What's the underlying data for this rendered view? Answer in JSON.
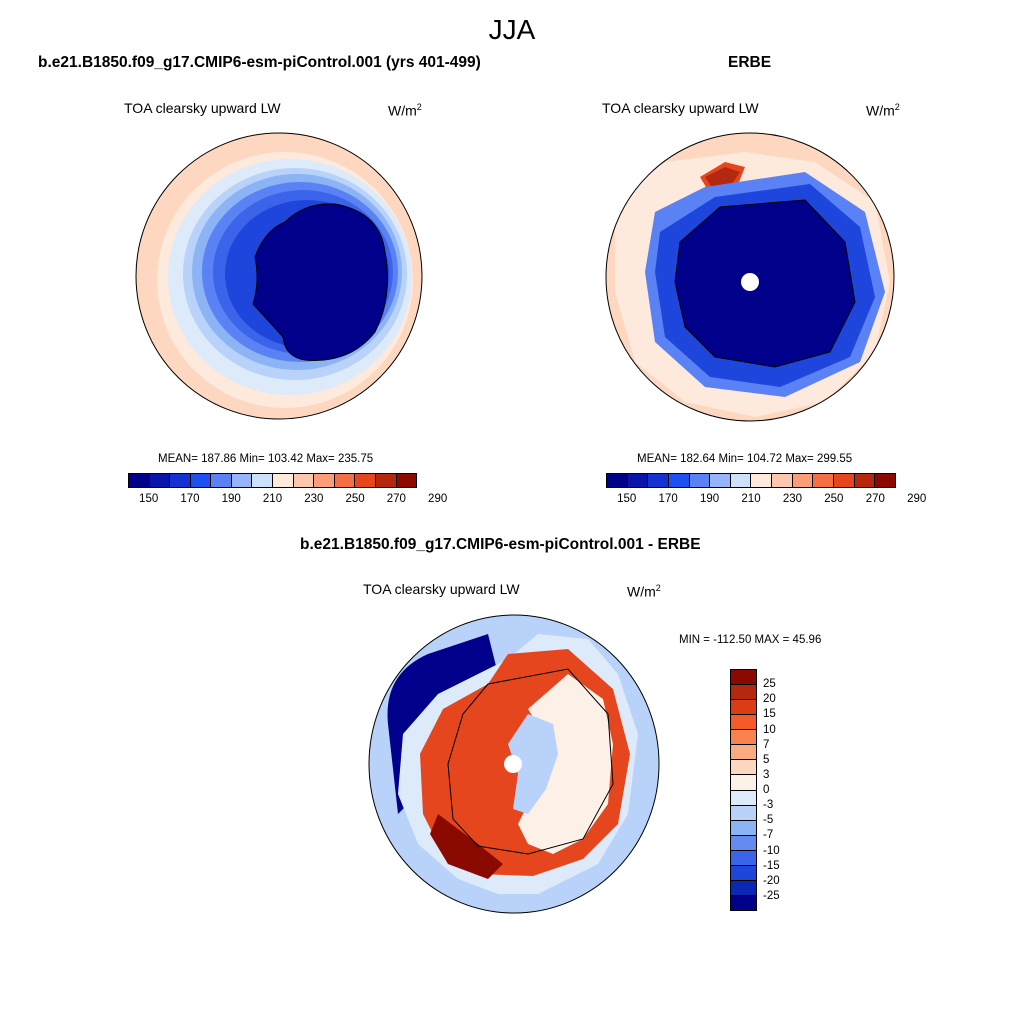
{
  "main_title": "JJA",
  "top_left": {
    "case_title": "b.e21.B1850.f09_g17.CMIP6-esm-piControl.001 (yrs 401-499)",
    "panel_title": "TOA clearsky upward LW",
    "units_base": "W/m",
    "units_exp": "2",
    "stats": "MEAN= 187.86  Min= 103.42  Max= 235.75"
  },
  "top_right": {
    "case_title": "ERBE",
    "panel_title": "TOA clearsky upward LW",
    "units_base": "W/m",
    "units_exp": "2",
    "stats": "MEAN= 182.64  Min= 104.72  Max= 299.55"
  },
  "bottom": {
    "case_title": "b.e21.B1850.f09_g17.CMIP6-esm-piControl.001 - ERBE",
    "panel_title": "TOA clearsky upward LW",
    "units_base": "W/m",
    "units_exp": "2",
    "minmax": "MIN = -112.50 MAX =  45.96"
  },
  "abs_colorbar": {
    "colors": [
      "#00008b",
      "#0a14a8",
      "#1432d2",
      "#1e50f0",
      "#5a82f5",
      "#96b4fa",
      "#cde1fa",
      "#fdeadc",
      "#fcc7ac",
      "#fb9e78",
      "#f56e46",
      "#e6461e",
      "#b4280f",
      "#8b0a00"
    ],
    "tick_labels": [
      "150",
      "170",
      "190",
      "210",
      "230",
      "250",
      "270",
      "290"
    ]
  },
  "diff_colorbar": {
    "colors_top_to_bottom": [
      "#8b0a00",
      "#b4280f",
      "#dc3c14",
      "#f55a28",
      "#fa8250",
      "#fcaa82",
      "#fdd7bf",
      "#fdf0e6",
      "#dceafa",
      "#b9d2fa",
      "#8cb4f5",
      "#648cf0",
      "#3c64eb",
      "#1e46dc",
      "#0a28b4",
      "#00008b"
    ],
    "labels": [
      "25",
      "20",
      "15",
      "10",
      "7",
      "5",
      "3",
      "0",
      "-3",
      "-5",
      "-7",
      "-10",
      "-15",
      "-20",
      "-25"
    ]
  }
}
